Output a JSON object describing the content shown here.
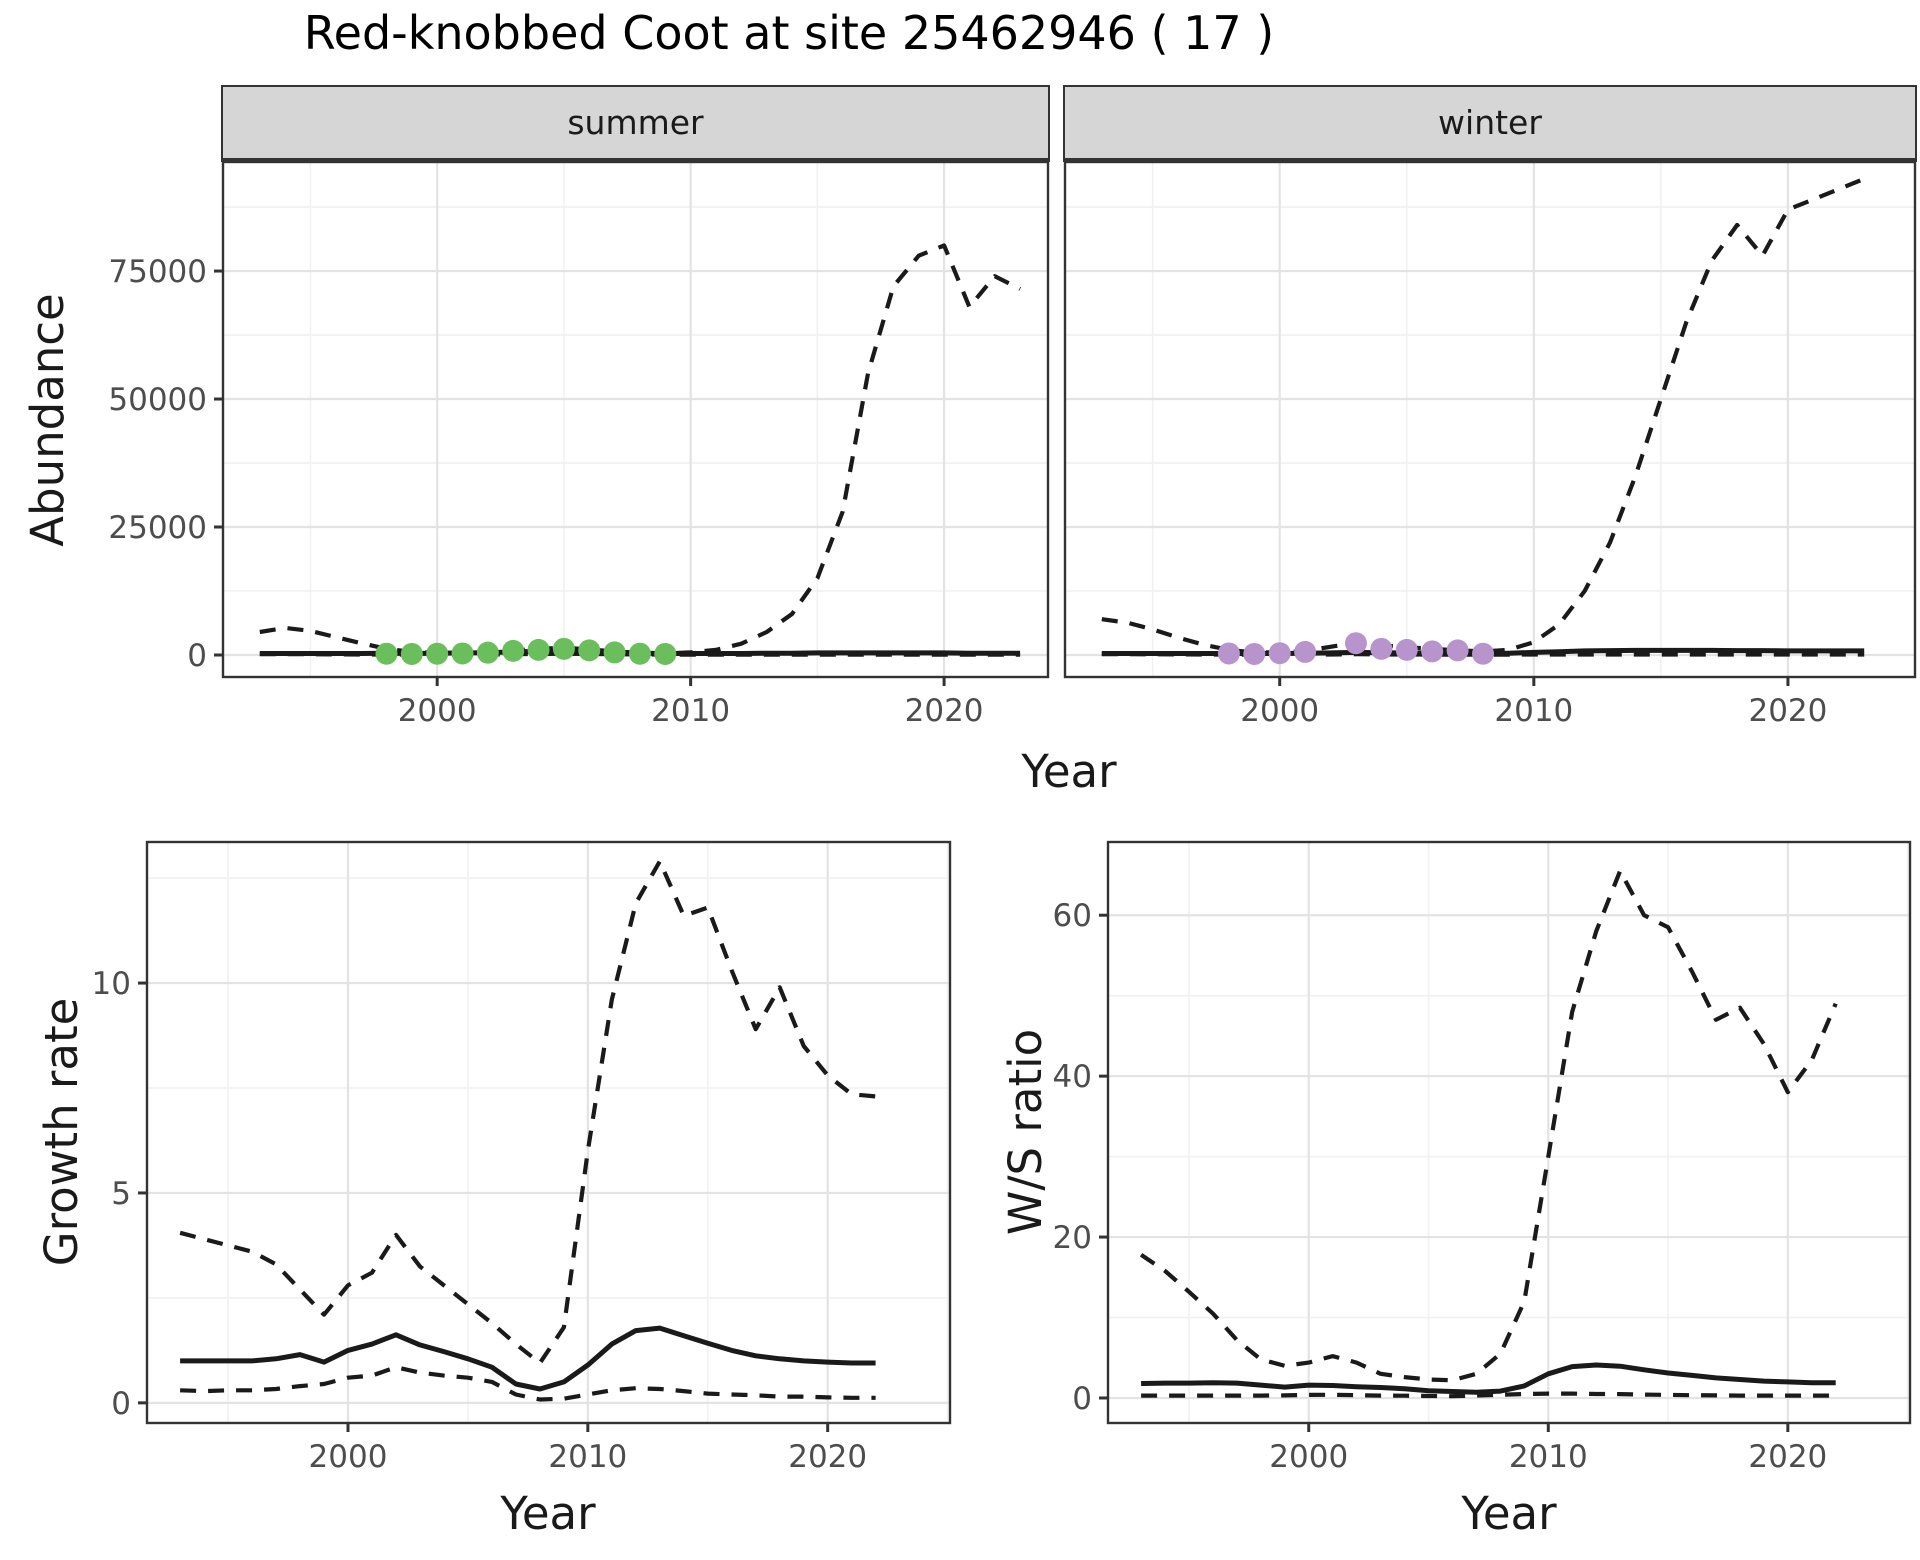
{
  "title": "Red-knobbed Coot at site 25462946 ( 17 )",
  "facets": {
    "summer_label": "summer",
    "winter_label": "winter"
  },
  "axis_titles": {
    "abundance": "Abundance",
    "year_top": "Year",
    "growth": "Growth rate",
    "year_left": "Year",
    "ws": "W/S ratio",
    "year_right": "Year"
  },
  "colors": {
    "summer_point": "#6ABE5B",
    "winter_point": "#B894CC",
    "line": "#1a1a1a",
    "grid_major": "#e3e3e3",
    "grid_minor": "#f1f1f1",
    "axis_text": "#4d4d4d",
    "panel_border": "#333333",
    "strip_bg": "#d6d6d6"
  },
  "chart_data": [
    {
      "id": "summer",
      "type": "line",
      "title": "summer",
      "xlabel": "Year",
      "ylabel": "Abundance",
      "xlim": [
        1991.55,
        2024.1
      ],
      "ylim": [
        -4300,
        96300
      ],
      "grid": true,
      "legend": "none",
      "xticks": {
        "major": [
          2000,
          2010,
          2020
        ],
        "labels": [
          "2000",
          "2010",
          "2020"
        ],
        "minor": [
          1995,
          2005,
          2015,
          2025
        ]
      },
      "yticks": {
        "major": [
          0,
          25000,
          50000,
          75000
        ],
        "labels": [
          "0",
          "25000",
          "50000",
          "75000"
        ],
        "minor": [
          12500,
          37500,
          62500,
          87500
        ]
      },
      "x": [
        1993,
        1994,
        1995,
        1996,
        1997,
        1998,
        1999,
        2000,
        2001,
        2002,
        2003,
        2004,
        2005,
        2006,
        2007,
        2008,
        2009,
        2010,
        2011,
        2012,
        2013,
        2014,
        2015,
        2016,
        2017,
        2018,
        2019,
        2020,
        2021,
        2022,
        2023
      ],
      "series": [
        {
          "name": "upper_ci",
          "style": "dashed",
          "values": [
            4500,
            5300,
            4700,
            3500,
            2300,
            1200,
            600,
            400,
            400,
            500,
            900,
            1200,
            1400,
            1100,
            700,
            400,
            300,
            500,
            1000,
            2200,
            4500,
            8000,
            15000,
            28000,
            55000,
            72000,
            78000,
            80000,
            68000,
            74000,
            71500
          ]
        },
        {
          "name": "estimate",
          "style": "solid",
          "values": [
            300,
            300,
            300,
            300,
            300,
            350,
            300,
            350,
            400,
            450,
            600,
            700,
            800,
            650,
            500,
            350,
            300,
            300,
            300,
            300,
            350,
            350,
            400,
            400,
            400,
            400,
            400,
            400,
            350,
            350,
            350
          ]
        },
        {
          "name": "lower_ci",
          "style": "dashed",
          "values": [
            150,
            150,
            150,
            120,
            100,
            100,
            80,
            80,
            80,
            100,
            150,
            200,
            250,
            200,
            150,
            100,
            80,
            80,
            80,
            80,
            80,
            80,
            80,
            80,
            80,
            80,
            80,
            80,
            80,
            80,
            80
          ]
        }
      ],
      "points": {
        "name": "observed-summer-counts",
        "color_key": "summer_point",
        "x": [
          1998,
          1999,
          2000,
          2001,
          2002,
          2003,
          2004,
          2005,
          2006,
          2007,
          2008,
          2009
        ],
        "y": [
          250,
          200,
          250,
          300,
          450,
          800,
          1000,
          1200,
          900,
          500,
          250,
          200
        ]
      }
    },
    {
      "id": "winter",
      "type": "line",
      "title": "winter",
      "xlabel": "Year",
      "ylabel": "Abundance",
      "xlim": [
        1991.55,
        2025.0
      ],
      "ylim": [
        -4300,
        96300
      ],
      "grid": true,
      "legend": "none",
      "xticks": {
        "major": [
          2000,
          2010,
          2020
        ],
        "labels": [
          "2000",
          "2010",
          "2020"
        ],
        "minor": [
          1995,
          2005,
          2015,
          2025
        ]
      },
      "yticks": {
        "major": [
          0,
          25000,
          50000,
          75000
        ],
        "labels": [
          "0",
          "25000",
          "50000",
          "75000"
        ],
        "minor": [
          12500,
          37500,
          62500,
          87500
        ]
      },
      "x": [
        1993,
        1994,
        1995,
        1996,
        1997,
        1998,
        1999,
        2000,
        2001,
        2002,
        2003,
        2004,
        2005,
        2006,
        2007,
        2008,
        2009,
        2010,
        2011,
        2012,
        2013,
        2014,
        2015,
        2016,
        2017,
        2018,
        2019,
        2020,
        2021,
        2022,
        2023
      ],
      "series": [
        {
          "name": "upper_ci",
          "style": "dashed",
          "values": [
            7000,
            6300,
            5000,
            3400,
            2000,
            1000,
            500,
            500,
            800,
            1600,
            2400,
            1900,
            1500,
            1200,
            900,
            700,
            1000,
            2500,
            6000,
            12500,
            22000,
            35000,
            50000,
            65000,
            77000,
            84000,
            78000,
            87000,
            89000,
            91000,
            93000
          ]
        },
        {
          "name": "estimate",
          "style": "solid",
          "values": [
            300,
            300,
            300,
            300,
            300,
            300,
            300,
            300,
            350,
            400,
            500,
            450,
            400,
            350,
            300,
            300,
            350,
            500,
            650,
            800,
            850,
            900,
            900,
            900,
            900,
            850,
            850,
            800,
            800,
            800,
            800
          ]
        },
        {
          "name": "lower_ci",
          "style": "dashed",
          "values": [
            150,
            150,
            130,
            120,
            100,
            80,
            80,
            80,
            80,
            100,
            150,
            120,
            100,
            80,
            80,
            80,
            80,
            100,
            100,
            100,
            100,
            100,
            100,
            100,
            100,
            100,
            100,
            100,
            100,
            100,
            100
          ]
        }
      ],
      "points": {
        "name": "observed-winter-counts",
        "color_key": "winter_point",
        "x": [
          1998,
          1999,
          2000,
          2001,
          2003,
          2004,
          2005,
          2006,
          2007,
          2008
        ],
        "y": [
          300,
          200,
          350,
          600,
          2300,
          1200,
          1000,
          700,
          900,
          250
        ]
      }
    },
    {
      "id": "growth",
      "type": "line",
      "title": "",
      "xlabel": "Year",
      "ylabel": "Growth rate",
      "xlim": [
        1991.62,
        2025.1
      ],
      "ylim": [
        -0.48,
        13.36
      ],
      "grid": true,
      "legend": "none",
      "xticks": {
        "major": [
          2000,
          2010,
          2020
        ],
        "labels": [
          "2000",
          "2010",
          "2020"
        ],
        "minor": [
          1995,
          2005,
          2015,
          2025
        ]
      },
      "yticks": {
        "major": [
          0,
          5,
          10
        ],
        "labels": [
          "0",
          "5",
          "10"
        ],
        "minor": [
          2.5,
          7.5,
          12.5
        ]
      },
      "x": [
        1993,
        1994,
        1995,
        1996,
        1997,
        1998,
        1999,
        2000,
        2001,
        2002,
        2003,
        2004,
        2005,
        2006,
        2007,
        2008,
        2009,
        2010,
        2011,
        2012,
        2013,
        2014,
        2015,
        2016,
        2017,
        2018,
        2019,
        2020,
        2021,
        2022
      ],
      "series": [
        {
          "name": "upper_ci",
          "style": "dashed",
          "values": [
            4.05,
            3.9,
            3.75,
            3.6,
            3.3,
            2.7,
            2.1,
            2.8,
            3.1,
            4.0,
            3.25,
            2.8,
            2.35,
            1.9,
            1.4,
            0.95,
            1.8,
            6.0,
            9.6,
            11.9,
            12.9,
            11.6,
            11.8,
            10.3,
            8.9,
            9.9,
            8.5,
            7.8,
            7.35,
            7.3
          ]
        },
        {
          "name": "estimate",
          "style": "solid",
          "values": [
            1.0,
            1.0,
            1.0,
            1.0,
            1.05,
            1.15,
            0.97,
            1.25,
            1.4,
            1.62,
            1.38,
            1.22,
            1.05,
            0.85,
            0.45,
            0.33,
            0.5,
            0.9,
            1.4,
            1.72,
            1.78,
            1.6,
            1.42,
            1.25,
            1.12,
            1.05,
            1.0,
            0.97,
            0.95,
            0.95
          ]
        },
        {
          "name": "lower_ci",
          "style": "dashed",
          "values": [
            0.3,
            0.28,
            0.3,
            0.3,
            0.33,
            0.4,
            0.45,
            0.6,
            0.65,
            0.85,
            0.72,
            0.65,
            0.6,
            0.5,
            0.2,
            0.08,
            0.1,
            0.2,
            0.3,
            0.35,
            0.33,
            0.28,
            0.22,
            0.2,
            0.18,
            0.15,
            0.15,
            0.13,
            0.12,
            0.12
          ]
        }
      ],
      "points": null
    },
    {
      "id": "ws",
      "type": "line",
      "title": "",
      "xlabel": "Year",
      "ylabel": "W/S ratio",
      "xlim": [
        1991.62,
        2025.1
      ],
      "ylim": [
        -3.11,
        69.1
      ],
      "grid": true,
      "legend": "none",
      "xticks": {
        "major": [
          2000,
          2010,
          2020
        ],
        "labels": [
          "2000",
          "2010",
          "2020"
        ],
        "minor": [
          1995,
          2005,
          2015,
          2025
        ]
      },
      "yticks": {
        "major": [
          0,
          20,
          40,
          60
        ],
        "labels": [
          "0",
          "20",
          "40",
          "60"
        ],
        "minor": [
          10,
          30,
          50
        ]
      },
      "x": [
        1993,
        1994,
        1995,
        1996,
        1997,
        1998,
        1999,
        2000,
        2001,
        2002,
        2003,
        2004,
        2005,
        2006,
        2007,
        2008,
        2009,
        2010,
        2011,
        2012,
        2013,
        2014,
        2015,
        2016,
        2017,
        2018,
        2019,
        2020,
        2021,
        2022
      ],
      "series": [
        {
          "name": "upper_ci",
          "style": "dashed",
          "values": [
            17.8,
            15.8,
            13.2,
            10.5,
            7.2,
            4.8,
            4.0,
            4.4,
            5.2,
            4.4,
            3.0,
            2.6,
            2.3,
            2.2,
            3.0,
            5.5,
            12.0,
            30.0,
            48.0,
            58.0,
            65.5,
            60.0,
            58.5,
            53.0,
            47.0,
            48.5,
            44.0,
            38.0,
            42.0,
            49.0
          ]
        },
        {
          "name": "estimate",
          "style": "solid",
          "values": [
            1.8,
            1.85,
            1.85,
            1.9,
            1.85,
            1.6,
            1.35,
            1.6,
            1.55,
            1.4,
            1.3,
            1.15,
            0.9,
            0.8,
            0.7,
            0.85,
            1.5,
            3.0,
            3.9,
            4.1,
            3.95,
            3.5,
            3.1,
            2.8,
            2.5,
            2.3,
            2.1,
            2.0,
            1.9,
            1.9
          ]
        },
        {
          "name": "lower_ci",
          "style": "dashed",
          "values": [
            0.3,
            0.3,
            0.3,
            0.3,
            0.3,
            0.3,
            0.32,
            0.38,
            0.4,
            0.35,
            0.3,
            0.28,
            0.25,
            0.22,
            0.3,
            0.4,
            0.5,
            0.55,
            0.55,
            0.5,
            0.48,
            0.42,
            0.38,
            0.35,
            0.32,
            0.3,
            0.3,
            0.3,
            0.3,
            0.3
          ]
        }
      ],
      "points": null
    }
  ]
}
